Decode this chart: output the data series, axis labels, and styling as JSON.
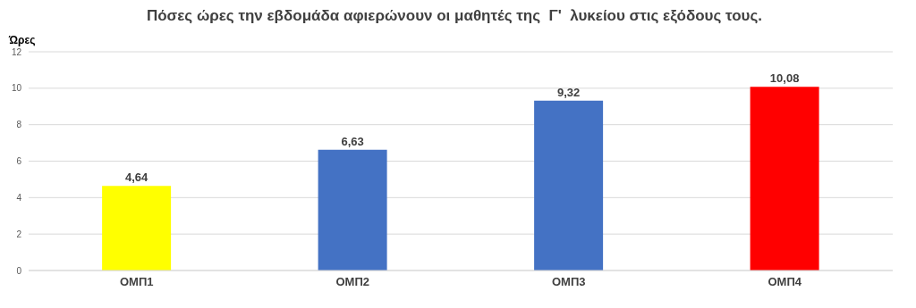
{
  "chart_data": {
    "type": "bar",
    "title": "Πόσες ώρες την εβδομάδα αφιερώνουν οι μαθητές της  Γ'  λυκείου στις εξόδους τους.",
    "ylabel": "Ώρες",
    "categories": [
      "ΟΜΠ1",
      "ΟΜΠ2",
      "ΟΜΠ3",
      "ΟΜΠ4"
    ],
    "values": [
      4.64,
      6.63,
      9.32,
      10.08
    ],
    "colors": [
      "#ffff00",
      "#4472c4",
      "#4472c4",
      "#ff0000"
    ],
    "value_labels": [
      "4,64",
      "6,63",
      "9,32",
      "10,08"
    ],
    "ylim": [
      0,
      12
    ],
    "yticks": [
      0,
      2,
      4,
      6,
      8,
      10,
      12
    ],
    "grid": "y"
  }
}
